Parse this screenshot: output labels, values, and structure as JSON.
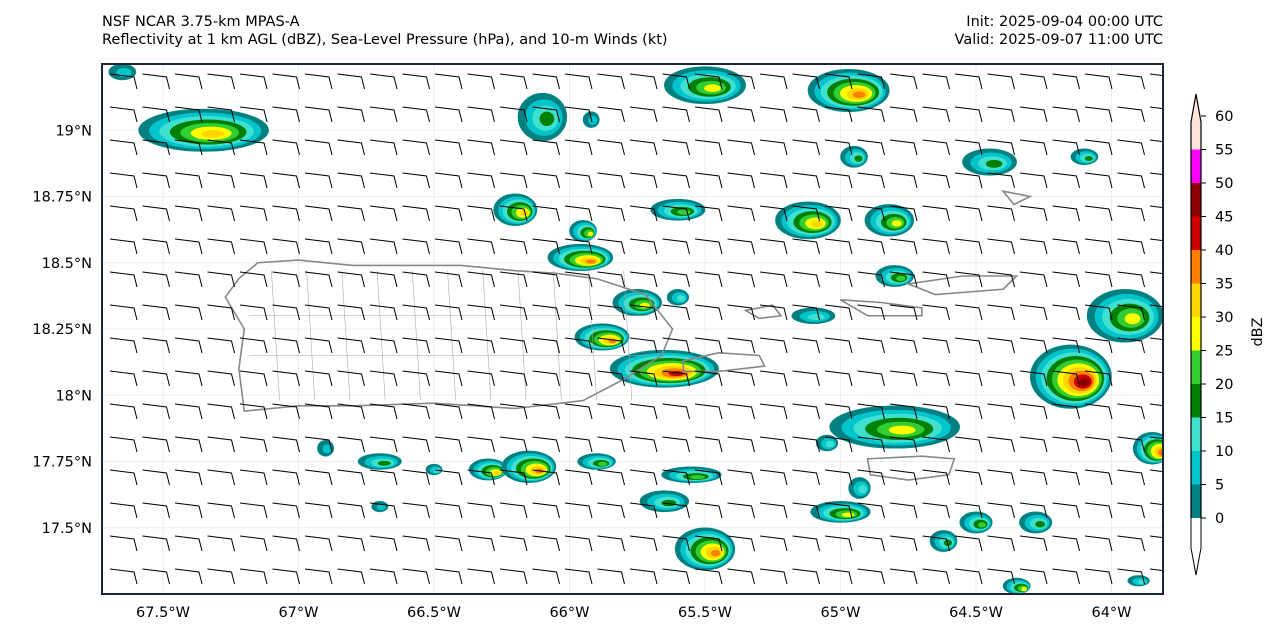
{
  "header": {
    "title_line1": "NSF NCAR 3.75-km MPAS-A",
    "title_line2": "Reflectivity at 1 km AGL (dBZ), Sea-Level Pressure (hPa), and 10-m Winds (kt)",
    "init": "Init: 2025-09-04 00:00 UTC",
    "valid": "Valid: 2025-09-07 11:00 UTC"
  },
  "map": {
    "lon_range": [
      -67.725,
      -63.81
    ],
    "lat_range": [
      17.25,
      19.25
    ],
    "lon_ticks": [
      {
        "v": -67.5,
        "label": "67.5°W"
      },
      {
        "v": -67,
        "label": "67°W"
      },
      {
        "v": -66.5,
        "label": "66.5°W"
      },
      {
        "v": -66,
        "label": "66°W"
      },
      {
        "v": -65.5,
        "label": "65.5°W"
      },
      {
        "v": -65,
        "label": "65°W"
      },
      {
        "v": -64.5,
        "label": "64.5°W"
      },
      {
        "v": -64,
        "label": "64°W"
      }
    ],
    "lat_ticks": [
      {
        "v": 19,
        "label": "19°N"
      },
      {
        "v": 18.75,
        "label": "18.75°N"
      },
      {
        "v": 18.5,
        "label": "18.5°N"
      },
      {
        "v": 18.25,
        "label": "18.25°N"
      },
      {
        "v": 18,
        "label": "18°N"
      },
      {
        "v": 17.75,
        "label": "17.75°N"
      },
      {
        "v": 17.5,
        "label": "17.5°N"
      }
    ],
    "wind": {
      "direction_deg": 100,
      "speed_kt": 10
    },
    "cells": [
      {
        "lon": -67.35,
        "lat": 19.0,
        "rx": 0.24,
        "ry": 0.08,
        "max": 35
      },
      {
        "lon": -65.5,
        "lat": 19.17,
        "rx": 0.15,
        "ry": 0.07,
        "max": 30
      },
      {
        "lon": -64.97,
        "lat": 19.15,
        "rx": 0.15,
        "ry": 0.08,
        "max": 40
      },
      {
        "lon": -66.1,
        "lat": 19.05,
        "rx": 0.09,
        "ry": 0.09,
        "max": 20
      },
      {
        "lon": -65.92,
        "lat": 19.04,
        "rx": 0.03,
        "ry": 0.03,
        "max": 10
      },
      {
        "lon": -66.2,
        "lat": 18.7,
        "rx": 0.08,
        "ry": 0.06,
        "max": 35
      },
      {
        "lon": -65.95,
        "lat": 18.62,
        "rx": 0.05,
        "ry": 0.04,
        "max": 30
      },
      {
        "lon": -65.96,
        "lat": 18.52,
        "rx": 0.12,
        "ry": 0.05,
        "max": 40
      },
      {
        "lon": -65.12,
        "lat": 18.66,
        "rx": 0.12,
        "ry": 0.07,
        "max": 35
      },
      {
        "lon": -64.82,
        "lat": 18.66,
        "rx": 0.09,
        "ry": 0.06,
        "max": 30
      },
      {
        "lon": -65.6,
        "lat": 18.7,
        "rx": 0.1,
        "ry": 0.04,
        "max": 25
      },
      {
        "lon": -64.95,
        "lat": 18.9,
        "rx": 0.05,
        "ry": 0.04,
        "max": 20
      },
      {
        "lon": -64.45,
        "lat": 18.88,
        "rx": 0.1,
        "ry": 0.05,
        "max": 20
      },
      {
        "lon": -64.1,
        "lat": 18.9,
        "rx": 0.05,
        "ry": 0.03,
        "max": 20
      },
      {
        "lon": -64.8,
        "lat": 18.45,
        "rx": 0.07,
        "ry": 0.04,
        "max": 25
      },
      {
        "lon": -65.75,
        "lat": 18.35,
        "rx": 0.09,
        "ry": 0.05,
        "max": 30
      },
      {
        "lon": -65.6,
        "lat": 18.37,
        "rx": 0.04,
        "ry": 0.03,
        "max": 15
      },
      {
        "lon": -65.88,
        "lat": 18.22,
        "rx": 0.1,
        "ry": 0.05,
        "max": 40
      },
      {
        "lon": -65.65,
        "lat": 18.1,
        "rx": 0.2,
        "ry": 0.07,
        "max": 45
      },
      {
        "lon": -65.1,
        "lat": 18.3,
        "rx": 0.08,
        "ry": 0.03,
        "max": 15
      },
      {
        "lon": -63.95,
        "lat": 18.3,
        "rx": 0.14,
        "ry": 0.1,
        "max": 30
      },
      {
        "lon": -64.15,
        "lat": 18.07,
        "rx": 0.15,
        "ry": 0.12,
        "max": 50
      },
      {
        "lon": -64.8,
        "lat": 17.88,
        "rx": 0.24,
        "ry": 0.08,
        "max": 30
      },
      {
        "lon": -63.85,
        "lat": 17.8,
        "rx": 0.07,
        "ry": 0.06,
        "max": 45
      },
      {
        "lon": -66.7,
        "lat": 17.75,
        "rx": 0.08,
        "ry": 0.03,
        "max": 20
      },
      {
        "lon": -66.3,
        "lat": 17.72,
        "rx": 0.07,
        "ry": 0.04,
        "max": 35
      },
      {
        "lon": -66.15,
        "lat": 17.73,
        "rx": 0.1,
        "ry": 0.06,
        "max": 40
      },
      {
        "lon": -65.9,
        "lat": 17.75,
        "rx": 0.07,
        "ry": 0.03,
        "max": 25
      },
      {
        "lon": -65.55,
        "lat": 17.7,
        "rx": 0.11,
        "ry": 0.03,
        "max": 25
      },
      {
        "lon": -65.65,
        "lat": 17.6,
        "rx": 0.09,
        "ry": 0.04,
        "max": 20
      },
      {
        "lon": -65.0,
        "lat": 17.56,
        "rx": 0.11,
        "ry": 0.04,
        "max": 30
      },
      {
        "lon": -64.93,
        "lat": 17.65,
        "rx": 0.04,
        "ry": 0.04,
        "max": 15
      },
      {
        "lon": -65.5,
        "lat": 17.42,
        "rx": 0.11,
        "ry": 0.08,
        "max": 40
      },
      {
        "lon": -64.5,
        "lat": 17.52,
        "rx": 0.06,
        "ry": 0.04,
        "max": 25
      },
      {
        "lon": -64.28,
        "lat": 17.52,
        "rx": 0.06,
        "ry": 0.04,
        "max": 20
      },
      {
        "lon": -64.62,
        "lat": 17.45,
        "rx": 0.05,
        "ry": 0.04,
        "max": 20
      },
      {
        "lon": -64.35,
        "lat": 17.28,
        "rx": 0.05,
        "ry": 0.03,
        "max": 30
      },
      {
        "lon": -66.9,
        "lat": 17.8,
        "rx": 0.03,
        "ry": 0.03,
        "max": 10
      },
      {
        "lon": -66.7,
        "lat": 17.58,
        "rx": 0.03,
        "ry": 0.02,
        "max": 10
      },
      {
        "lon": -66.5,
        "lat": 17.72,
        "rx": 0.03,
        "ry": 0.02,
        "max": 15
      },
      {
        "lon": -65.05,
        "lat": 17.82,
        "rx": 0.04,
        "ry": 0.03,
        "max": 15
      },
      {
        "lon": -67.65,
        "lat": 19.22,
        "rx": 0.05,
        "ry": 0.03,
        "max": 10
      },
      {
        "lon": -63.9,
        "lat": 17.3,
        "rx": 0.04,
        "ry": 0.02,
        "max": 15
      }
    ]
  },
  "colorbar": {
    "label": "dBZ",
    "levels": [
      0,
      5,
      10,
      15,
      20,
      25,
      30,
      35,
      40,
      45,
      50,
      55,
      60
    ],
    "tick_labels": [
      "0",
      "5",
      "10",
      "15",
      "20",
      "25",
      "30",
      "35",
      "40",
      "45",
      "50",
      "55",
      "60"
    ],
    "colors": [
      "#008080",
      "#00c5cc",
      "#40e0d0",
      "#008000",
      "#32cd32",
      "#ffff00",
      "#ffd700",
      "#ff8000",
      "#cc0000",
      "#8b0000",
      "#ff00ff",
      "#ffe4da"
    ]
  }
}
